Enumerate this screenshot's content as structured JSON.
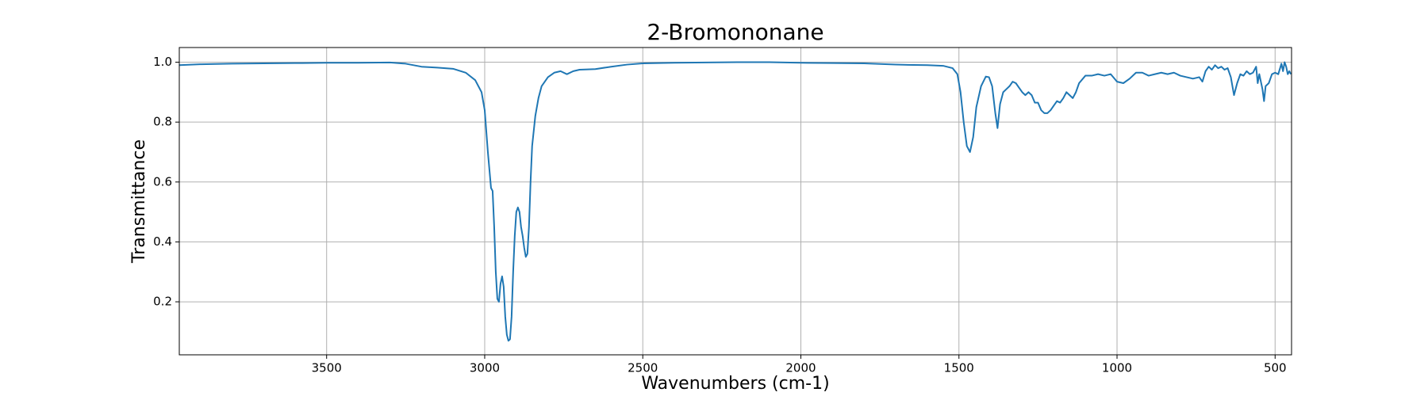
{
  "chart_data": {
    "type": "line",
    "title": "2-Bromononane",
    "x_label": "Wavenumbers (cm-1)",
    "y_label": "Transmittance",
    "color": "#1f77b4",
    "grid": true,
    "xlim": [
      3966,
      448
    ],
    "ylim": [
      0.023,
      1.049
    ],
    "xticks": [
      3500,
      3000,
      2500,
      2000,
      1500,
      1000,
      500
    ],
    "yticks": [
      0.2,
      0.4,
      0.6,
      0.8,
      {
        "value": 1,
        "label": "1.0"
      }
    ],
    "x": [
      3966,
      3900,
      3800,
      3700,
      3600,
      3500,
      3400,
      3300,
      3250,
      3200,
      3150,
      3100,
      3060,
      3030,
      3010,
      3000,
      2990,
      2980,
      2975,
      2970,
      2965,
      2960,
      2955,
      2950,
      2945,
      2940,
      2935,
      2930,
      2925,
      2920,
      2915,
      2910,
      2905,
      2900,
      2895,
      2890,
      2885,
      2880,
      2875,
      2870,
      2865,
      2860,
      2855,
      2850,
      2840,
      2830,
      2820,
      2800,
      2780,
      2760,
      2740,
      2720,
      2700,
      2650,
      2600,
      2550,
      2500,
      2400,
      2300,
      2200,
      2100,
      2000,
      1900,
      1800,
      1700,
      1600,
      1550,
      1520,
      1505,
      1495,
      1485,
      1475,
      1465,
      1455,
      1445,
      1430,
      1415,
      1405,
      1395,
      1385,
      1378,
      1370,
      1360,
      1350,
      1340,
      1330,
      1320,
      1310,
      1300,
      1290,
      1280,
      1270,
      1260,
      1250,
      1240,
      1230,
      1220,
      1210,
      1200,
      1190,
      1180,
      1170,
      1160,
      1150,
      1140,
      1130,
      1120,
      1100,
      1080,
      1060,
      1040,
      1020,
      1000,
      980,
      960,
      940,
      920,
      900,
      880,
      860,
      840,
      820,
      800,
      780,
      760,
      740,
      730,
      720,
      710,
      700,
      690,
      680,
      670,
      660,
      650,
      640,
      630,
      620,
      610,
      600,
      590,
      580,
      570,
      560,
      555,
      550,
      540,
      535,
      530,
      520,
      510,
      500,
      490,
      480,
      475,
      470,
      465,
      460,
      455,
      450
    ],
    "values": [
      0.99,
      0.993,
      0.995,
      0.996,
      0.997,
      0.998,
      0.998,
      0.999,
      0.995,
      0.985,
      0.982,
      0.978,
      0.965,
      0.94,
      0.9,
      0.84,
      0.7,
      0.58,
      0.57,
      0.45,
      0.3,
      0.21,
      0.2,
      0.26,
      0.285,
      0.25,
      0.15,
      0.09,
      0.07,
      0.075,
      0.15,
      0.3,
      0.42,
      0.5,
      0.515,
      0.5,
      0.45,
      0.42,
      0.38,
      0.35,
      0.36,
      0.45,
      0.6,
      0.72,
      0.82,
      0.88,
      0.92,
      0.95,
      0.965,
      0.97,
      0.96,
      0.97,
      0.975,
      0.977,
      0.985,
      0.992,
      0.996,
      0.998,
      0.999,
      1.0,
      1.0,
      0.998,
      0.997,
      0.996,
      0.992,
      0.99,
      0.988,
      0.98,
      0.96,
      0.9,
      0.8,
      0.72,
      0.7,
      0.75,
      0.85,
      0.92,
      0.952,
      0.95,
      0.92,
      0.83,
      0.78,
      0.86,
      0.9,
      0.91,
      0.92,
      0.935,
      0.93,
      0.915,
      0.9,
      0.89,
      0.9,
      0.89,
      0.865,
      0.865,
      0.84,
      0.83,
      0.83,
      0.84,
      0.855,
      0.87,
      0.865,
      0.88,
      0.9,
      0.89,
      0.88,
      0.9,
      0.93,
      0.955,
      0.955,
      0.96,
      0.955,
      0.96,
      0.935,
      0.93,
      0.945,
      0.965,
      0.965,
      0.955,
      0.96,
      0.965,
      0.96,
      0.965,
      0.955,
      0.95,
      0.945,
      0.95,
      0.935,
      0.97,
      0.985,
      0.975,
      0.99,
      0.98,
      0.985,
      0.975,
      0.98,
      0.95,
      0.89,
      0.93,
      0.96,
      0.955,
      0.97,
      0.96,
      0.965,
      0.985,
      0.93,
      0.96,
      0.91,
      0.87,
      0.92,
      0.93,
      0.96,
      0.965,
      0.96,
      0.995,
      0.97,
      1.0,
      0.985,
      0.96,
      0.97,
      0.96
    ]
  }
}
